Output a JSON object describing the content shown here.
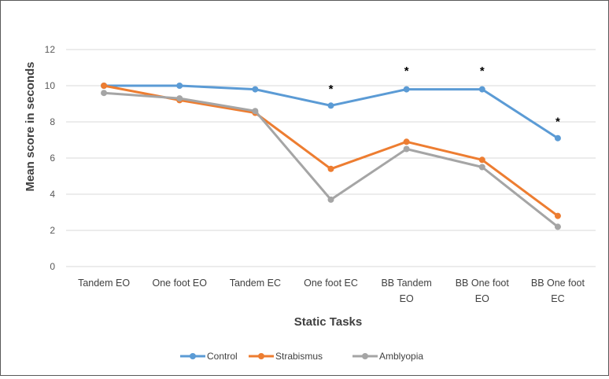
{
  "chart_data": {
    "type": "line",
    "title": "",
    "xlabel": "Static Tasks",
    "ylabel": "Mean score in seconds",
    "ylim": [
      0,
      12
    ],
    "yticks": [
      0,
      2,
      4,
      6,
      8,
      10,
      12
    ],
    "grid": "horizontal",
    "legend_position": "bottom",
    "categories": [
      [
        "Tandem EO"
      ],
      [
        "One foot EO"
      ],
      [
        "Tandem EC"
      ],
      [
        "One foot EC"
      ],
      [
        "BB Tandem",
        "EO"
      ],
      [
        "BB One foot",
        "EO"
      ],
      [
        "BB One foot",
        "EC"
      ]
    ],
    "series": [
      {
        "name": "Control",
        "color": "#5B9BD5",
        "values": [
          10.0,
          10.0,
          9.8,
          8.9,
          9.8,
          9.8,
          7.1
        ]
      },
      {
        "name": "Strabismus",
        "color": "#ED7D31",
        "values": [
          10.0,
          9.2,
          8.5,
          5.4,
          6.9,
          5.9,
          2.8
        ]
      },
      {
        "name": "Amblyopia",
        "color": "#A5A5A5",
        "values": [
          9.6,
          9.3,
          8.6,
          3.7,
          6.5,
          5.5,
          2.2
        ]
      }
    ],
    "annotations": [
      {
        "text": "*",
        "category_index": 3,
        "y": 9.6
      },
      {
        "text": "*",
        "category_index": 4,
        "y": 10.6
      },
      {
        "text": "*",
        "category_index": 5,
        "y": 10.6
      },
      {
        "text": "*",
        "category_index": 6,
        "y": 7.8
      }
    ]
  }
}
